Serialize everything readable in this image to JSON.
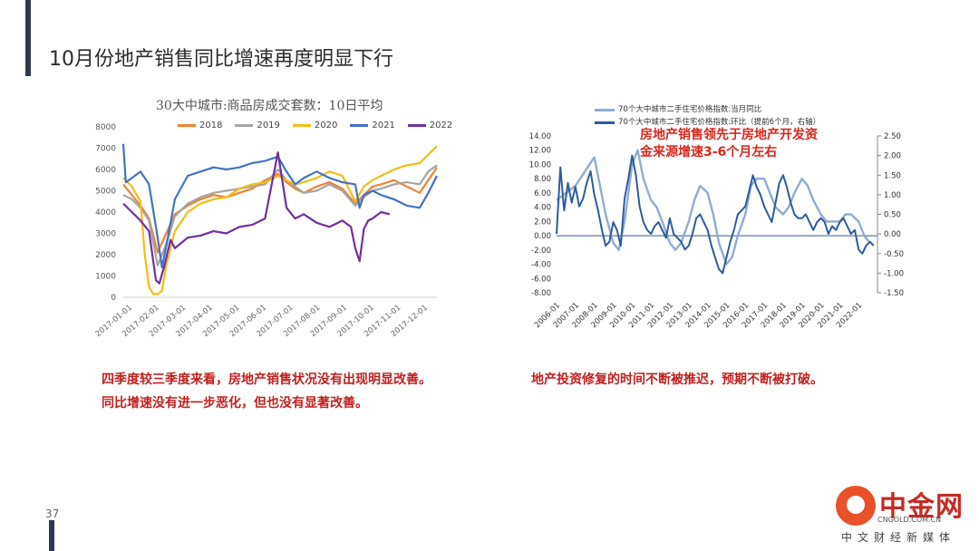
{
  "page": {
    "title": "10月份地产销售同比增速再度明显下行",
    "page_number": "37",
    "captions_left": [
      "四季度较三季度来看，房地产销售状况没有出现明显改善。",
      "同比增速没有进一步恶化，但也没有显著改善。"
    ],
    "caption_right": "地产投资修复的时间不断被推迟，预期不断被打破。",
    "brand": {
      "name": "中金网",
      "domain": "CNGOLD.COM.CN",
      "tagline": "中文财经新媒体"
    }
  },
  "colors": {
    "accent_bar": "#2f3852",
    "caption_red": "#c0201e",
    "logo_orange": "#e8512a"
  },
  "chart_data": [
    {
      "type": "line",
      "title": "30大中城市:商品房成交套数：10日平均",
      "x_tick_labels": [
        "2017-01-01",
        "2017-02-01",
        "2017-03-01",
        "2017-04-01",
        "2017-05-01",
        "2017-06-01",
        "2017-07-01",
        "2017-08-01",
        "2017-09-01",
        "2017-10-01",
        "2017-11-01",
        "2017-12-01"
      ],
      "y_ticks": [
        0,
        1000,
        2000,
        3000,
        4000,
        5000,
        6000,
        7000,
        8000
      ],
      "ylim": [
        0,
        8000
      ],
      "x_range": [
        0,
        365
      ],
      "grid": false,
      "legend_position": "top",
      "series": [
        {
          "name": "2018",
          "color": "#ee8331",
          "x": [
            0,
            10,
            20,
            30,
            40,
            50,
            60,
            75,
            90,
            105,
            120,
            135,
            150,
            165,
            180,
            190,
            200,
            210,
            225,
            240,
            255,
            270,
            280,
            290,
            300,
            315,
            330,
            345,
            355,
            365
          ],
          "y": [
            5300,
            4800,
            4300,
            3700,
            2100,
            3000,
            3900,
            4300,
            4600,
            4800,
            4700,
            4900,
            5100,
            5500,
            5800,
            5400,
            5100,
            4900,
            5200,
            5400,
            5100,
            4400,
            4800,
            5200,
            5300,
            5500,
            5200,
            4900,
            5500,
            6100
          ]
        },
        {
          "name": "2019",
          "color": "#a5a5a5",
          "x": [
            0,
            10,
            20,
            30,
            40,
            50,
            60,
            75,
            90,
            105,
            120,
            135,
            150,
            165,
            180,
            190,
            200,
            210,
            225,
            240,
            255,
            270,
            280,
            290,
            300,
            315,
            330,
            345,
            355,
            365
          ],
          "y": [
            4800,
            4600,
            4200,
            3600,
            1500,
            2500,
            3800,
            4400,
            4700,
            4900,
            5000,
            5100,
            5200,
            5300,
            6000,
            5500,
            5200,
            4900,
            5000,
            5300,
            5000,
            4300,
            4700,
            5000,
            5100,
            5300,
            5400,
            5300,
            5900,
            6200
          ]
        },
        {
          "name": "2020",
          "color": "#f3bd17",
          "x": [
            0,
            10,
            20,
            25,
            30,
            35,
            40,
            45,
            50,
            60,
            75,
            90,
            105,
            120,
            135,
            150,
            165,
            180,
            190,
            200,
            210,
            225,
            240,
            255,
            270,
            280,
            290,
            300,
            315,
            330,
            345,
            355,
            365
          ],
          "y": [
            5600,
            5200,
            4500,
            2000,
            500,
            150,
            150,
            300,
            1500,
            3100,
            4000,
            4400,
            4600,
            4700,
            5100,
            5300,
            5400,
            5700,
            5500,
            5300,
            5400,
            5600,
            5900,
            5700,
            4500,
            5200,
            5500,
            5700,
            6000,
            6200,
            6300,
            6700,
            7100
          ]
        },
        {
          "name": "2021",
          "color": "#4472c4",
          "x": [
            0,
            3,
            10,
            20,
            30,
            40,
            45,
            50,
            60,
            75,
            90,
            105,
            120,
            135,
            150,
            165,
            180,
            190,
            200,
            210,
            225,
            240,
            255,
            270,
            275,
            280,
            290,
            300,
            315,
            330,
            345,
            355,
            365
          ],
          "y": [
            7200,
            5400,
            5600,
            5900,
            5300,
            2800,
            1400,
            2400,
            4600,
            5700,
            5900,
            6100,
            6000,
            6100,
            6300,
            6400,
            6600,
            5900,
            5300,
            5600,
            5900,
            5600,
            5400,
            5300,
            4200,
            4800,
            5000,
            4800,
            4600,
            4300,
            4200,
            4900,
            5700
          ]
        },
        {
          "name": "2022",
          "color": "#7030a0",
          "x": [
            0,
            10,
            20,
            30,
            38,
            42,
            48,
            55,
            60,
            75,
            90,
            105,
            120,
            135,
            150,
            165,
            180,
            190,
            200,
            210,
            225,
            240,
            255,
            265,
            270,
            275,
            280,
            285,
            290,
            300,
            310
          ],
          "y": [
            4400,
            4000,
            3600,
            3100,
            800,
            650,
            1500,
            2700,
            2300,
            2800,
            2900,
            3100,
            3000,
            3300,
            3400,
            3700,
            6800,
            4200,
            3700,
            3900,
            3500,
            3300,
            3600,
            3300,
            2300,
            1700,
            3200,
            3600,
            3700,
            4000,
            3900
          ]
        }
      ]
    },
    {
      "type": "line",
      "legend": [
        "70个大中城市二手住宅价格指数:当月同比",
        "70个大中城市二手住宅价格指数:环比（提前6个月，右轴）"
      ],
      "annotation": [
        "房地产销售领先于房地产开发资",
        "金来源增速3-6个月左右"
      ],
      "x_tick_labels": [
        "2006-01",
        "2007-01",
        "2008-01",
        "2009-01",
        "2010-01",
        "2011-01",
        "2012-01",
        "2013-01",
        "2014-01",
        "2015-01",
        "2016-01",
        "2017-01",
        "2018-01",
        "2019-01",
        "2020-01",
        "2021-01",
        "2022-01"
      ],
      "x_range": [
        2006.0,
        2023.0
      ],
      "y_left_ticks": [
        "14.00",
        "12.00",
        "10.00",
        "8.00",
        "6.00",
        "4.00",
        "2.00",
        "0.00",
        "-2.00",
        "-4.00",
        "-6.00",
        "-8.00"
      ],
      "y_right_ticks": [
        "2.50",
        "2.00",
        "1.50",
        "1.00",
        "0.50",
        "0.00",
        "-0.50",
        "-1.00",
        "-1.50"
      ],
      "ylim_left": [
        -8,
        14
      ],
      "ylim_right": [
        -1.5,
        2.5
      ],
      "series": [
        {
          "name": "70个大中城市二手住宅价格指数:当月同比",
          "color": "#8fadd3",
          "axis": "left",
          "x": [
            2006.0,
            2006.5,
            2007.0,
            2007.5,
            2008.0,
            2008.3,
            2008.6,
            2009.0,
            2009.3,
            2009.6,
            2010.0,
            2010.3,
            2010.6,
            2011.0,
            2011.3,
            2011.6,
            2012.0,
            2012.3,
            2012.6,
            2013.0,
            2013.3,
            2013.6,
            2014.0,
            2014.3,
            2014.6,
            2015.0,
            2015.3,
            2015.6,
            2016.0,
            2016.3,
            2016.6,
            2017.0,
            2017.3,
            2017.6,
            2018.0,
            2018.3,
            2018.6,
            2019.0,
            2019.3,
            2019.6,
            2020.0,
            2020.3,
            2020.6,
            2021.0,
            2021.3,
            2021.6,
            2022.0,
            2022.3,
            2022.6
          ],
          "y": [
            5,
            6,
            7,
            9,
            11,
            7,
            3,
            -1,
            -2,
            2,
            10,
            12,
            8,
            5,
            4,
            2,
            -1,
            -2,
            -1,
            2,
            5,
            7,
            6,
            3,
            -1,
            -4,
            -3,
            0,
            3,
            7,
            8,
            8,
            6,
            4,
            3,
            4,
            6,
            8,
            7,
            5,
            3,
            2,
            2,
            2,
            3,
            3,
            2,
            0,
            -1
          ]
        },
        {
          "name": "70个大中城市二手住宅价格指数:环比（提前6个月，右轴）",
          "color": "#2e5c99",
          "axis": "right",
          "x": [
            2006.0,
            2006.2,
            2006.4,
            2006.6,
            2006.8,
            2007.0,
            2007.2,
            2007.4,
            2007.6,
            2007.8,
            2008.0,
            2008.2,
            2008.4,
            2008.6,
            2008.8,
            2009.0,
            2009.2,
            2009.4,
            2009.6,
            2009.8,
            2010.0,
            2010.2,
            2010.4,
            2010.6,
            2010.8,
            2011.0,
            2011.2,
            2011.4,
            2011.6,
            2011.8,
            2012.0,
            2012.2,
            2012.4,
            2012.6,
            2012.8,
            2013.0,
            2013.2,
            2013.4,
            2013.6,
            2013.8,
            2014.0,
            2014.2,
            2014.4,
            2014.6,
            2014.8,
            2015.0,
            2015.2,
            2015.4,
            2015.6,
            2015.8,
            2016.0,
            2016.2,
            2016.4,
            2016.6,
            2016.8,
            2017.0,
            2017.2,
            2017.4,
            2017.6,
            2017.8,
            2018.0,
            2018.2,
            2018.4,
            2018.6,
            2018.8,
            2019.0,
            2019.2,
            2019.4,
            2019.6,
            2019.8,
            2020.0,
            2020.2,
            2020.4,
            2020.6,
            2020.8,
            2021.0,
            2021.2,
            2021.4,
            2021.6,
            2021.8,
            2022.0,
            2022.2,
            2022.4,
            2022.6,
            2022.8
          ],
          "y": [
            0,
            1.7,
            0.6,
            1.3,
            0.8,
            1.2,
            0.7,
            0.9,
            1.3,
            1.6,
            1.0,
            0.6,
            0.1,
            -0.3,
            -0.2,
            0.3,
            0.1,
            -0.3,
            0.9,
            1.4,
            2.0,
            1.5,
            0.7,
            0.3,
            0.1,
            0.0,
            0.2,
            0.3,
            0.1,
            -0.1,
            0.4,
            0.0,
            -0.1,
            -0.2,
            -0.4,
            -0.3,
            0.0,
            0.4,
            0.5,
            0.3,
            0.1,
            -0.3,
            -0.6,
            -0.9,
            -1.0,
            -0.6,
            -0.2,
            0.1,
            0.5,
            0.6,
            0.7,
            1.1,
            1.5,
            1.2,
            1.0,
            0.7,
            0.5,
            0.3,
            0.8,
            1.3,
            1.5,
            1.2,
            0.8,
            0.5,
            0.4,
            0.4,
            0.5,
            0.3,
            0.1,
            0.3,
            0.4,
            0.3,
            0.0,
            0.2,
            0.1,
            0.3,
            0.4,
            0.2,
            0.0,
            0.1,
            -0.4,
            -0.5,
            -0.3,
            -0.2,
            -0.3
          ]
        }
      ]
    }
  ]
}
